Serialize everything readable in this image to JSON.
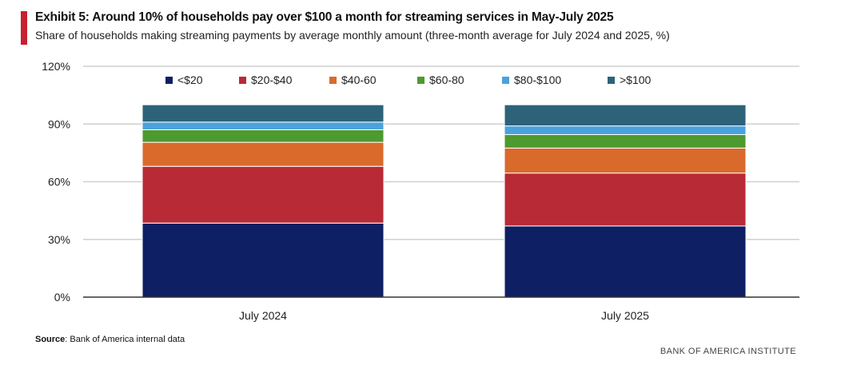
{
  "title": "Exhibit 5: Around 10% of households pay over $100 a month for streaming services in May-July 2025",
  "subtitle": "Share of households making streaming payments by average monthly amount (three-month average for July 2024 and 2025, %)",
  "source_label": "Source",
  "source_text": ": Bank of America internal data",
  "brand": "BANK OF AMERICA INSTITUTE",
  "chart_data": {
    "type": "bar",
    "stacked": true,
    "categories": [
      "July 2024",
      "July 2025"
    ],
    "series": [
      {
        "name": "<$20",
        "color": "#0e1f63",
        "values": [
          38.5,
          37.0
        ]
      },
      {
        "name": "$20-$40",
        "color": "#b82a36",
        "values": [
          29.5,
          27.5
        ]
      },
      {
        "name": "$40-60",
        "color": "#d96a2b",
        "values": [
          12.5,
          13.0
        ]
      },
      {
        "name": "$60-80",
        "color": "#4d9a2e",
        "values": [
          6.5,
          7.0
        ]
      },
      {
        "name": "$80-$100",
        "color": "#4aa2dc",
        "values": [
          4.0,
          4.5
        ]
      },
      {
        "name": ">$100",
        "color": "#2d6279",
        "values": [
          9.0,
          11.0
        ]
      }
    ],
    "yticks": [
      "0%",
      "30%",
      "60%",
      "90%",
      "120%"
    ],
    "ylim": [
      0,
      120
    ],
    "grid": true,
    "legend_position": "top"
  }
}
